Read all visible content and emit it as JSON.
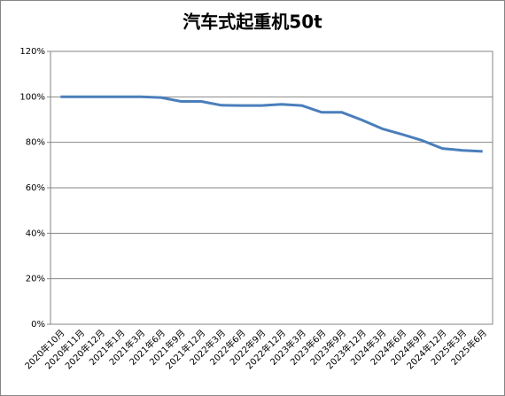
{
  "chart_data": {
    "type": "line",
    "title": "汽车式起重机50t",
    "categories": [
      "2020年10月",
      "2020年11月",
      "2020年12月",
      "2021年1月",
      "2021年3月",
      "2021年6月",
      "2021年9月",
      "2021年12月",
      "2022年3月",
      "2022年6月",
      "2022年9月",
      "2022年12月",
      "2023年3月",
      "2023年6月",
      "2023年9月",
      "2023年12月",
      "2024年3月",
      "2024年6月",
      "2024年9月",
      "2024年12月",
      "2025年3月",
      "2025年6月"
    ],
    "values": [
      100,
      100,
      100,
      100,
      100,
      99.7,
      98,
      98,
      96.3,
      96.2,
      96.2,
      96.7,
      96.2,
      93.2,
      93.2,
      89.8,
      86,
      83.5,
      80.8,
      77.3,
      76.5,
      76
    ],
    "color": "#4a7ebb",
    "ylim": [
      0,
      120
    ],
    "yticks": [
      {
        "value": 0,
        "label": "0%"
      },
      {
        "value": 20,
        "label": "20%"
      },
      {
        "value": 40,
        "label": "40%"
      },
      {
        "value": 60,
        "label": "60%"
      },
      {
        "value": 80,
        "label": "80%"
      },
      {
        "value": 100,
        "label": "100%"
      },
      {
        "value": 120,
        "label": "120%"
      }
    ],
    "grid": true
  }
}
